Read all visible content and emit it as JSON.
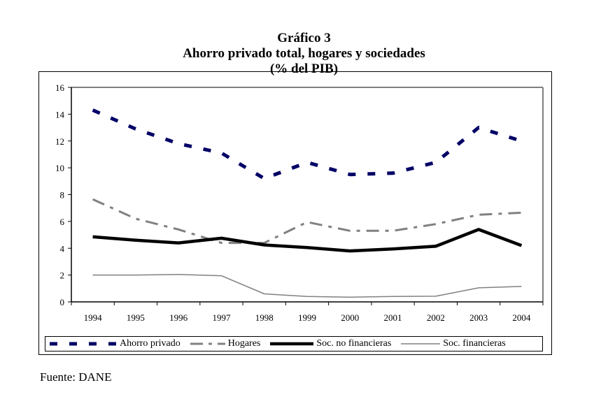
{
  "chart_data": {
    "type": "line",
    "title": "Gráfico 3",
    "subtitle": "Ahorro privado total, hogares y sociedades",
    "unit_label": "(% del PIB)",
    "xlabel": "",
    "ylabel": "",
    "ylim": [
      0,
      16
    ],
    "yticks": [
      "0",
      "2",
      "4",
      "6",
      "8",
      "10",
      "12",
      "14",
      "16"
    ],
    "categories": [
      "1994",
      "1995",
      "1996",
      "1997",
      "1998",
      "1999",
      "2000",
      "2001",
      "2002",
      "2003",
      "2004"
    ],
    "grid": false,
    "legend_position": "bottom",
    "series": [
      {
        "name": "Ahorro privado",
        "color": "#000066",
        "style": "dashed-thick",
        "values": [
          14.3,
          12.9,
          11.8,
          11.1,
          9.2,
          10.4,
          9.5,
          9.6,
          10.4,
          13.0,
          12.0
        ]
      },
      {
        "name": "Hogares",
        "color": "#808080",
        "style": "dash-dot",
        "values": [
          7.65,
          6.2,
          5.4,
          4.4,
          4.4,
          5.95,
          5.3,
          5.3,
          5.8,
          6.5,
          6.65
        ]
      },
      {
        "name": "Soc. no financieras",
        "color": "#000000",
        "style": "solid-thick",
        "values": [
          4.85,
          4.6,
          4.4,
          4.75,
          4.25,
          4.05,
          3.8,
          3.95,
          4.15,
          5.4,
          4.2
        ]
      },
      {
        "name": "Soc. financieras",
        "color": "#808080",
        "style": "solid-thin",
        "values": [
          2.0,
          2.0,
          2.05,
          1.95,
          0.6,
          0.4,
          0.35,
          0.4,
          0.42,
          1.05,
          1.15
        ]
      }
    ]
  },
  "footer": {
    "source": "Fuente: DANE"
  }
}
